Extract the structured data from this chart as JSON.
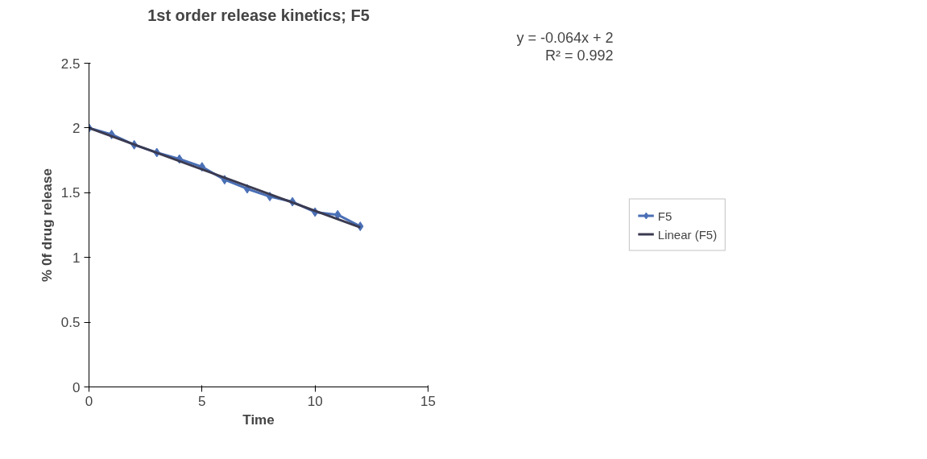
{
  "chart_data": {
    "type": "line",
    "title": "1st order release kinetics; F5",
    "xlabel": "Time",
    "ylabel": "% 0f drug release",
    "xlim": [
      0,
      15
    ],
    "xticks": [
      0,
      5,
      10,
      15
    ],
    "ylim": [
      0,
      2.5
    ],
    "yticks": [
      0,
      0.5,
      1,
      1.5,
      2,
      2.5
    ],
    "grid": false,
    "legend": "right",
    "marker": "diamond",
    "annotations": [
      "y = -0.064x + 2",
      "R² = 0.992"
    ],
    "series": [
      {
        "name": "F5",
        "color": "#4a6fb5",
        "x": [
          0,
          1,
          2,
          3,
          4,
          5,
          6,
          7,
          8,
          9,
          10,
          11,
          12
        ],
        "values": [
          2.0,
          1.95,
          1.87,
          1.81,
          1.76,
          1.7,
          1.6,
          1.53,
          1.47,
          1.43,
          1.35,
          1.33,
          1.24
        ]
      },
      {
        "name": "Linear (F5)",
        "color": "#3a3a50",
        "type": "line",
        "marker": "none",
        "x": [
          0,
          12
        ],
        "values": [
          2.0,
          1.232
        ]
      }
    ]
  }
}
